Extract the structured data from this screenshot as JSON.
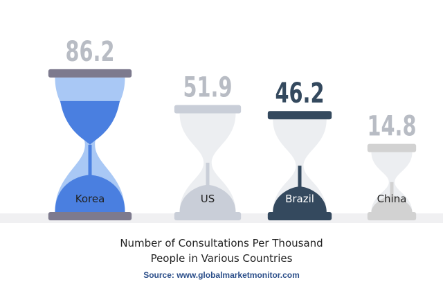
{
  "chart_data": {
    "type": "hourglass",
    "categories": [
      "Korea",
      "US",
      "Brazil",
      "China"
    ],
    "values": [
      86.2,
      51.9,
      46.2,
      14.8
    ],
    "colors": [
      "#4a7fe0",
      "#c9ced8",
      "#34495e",
      "#d2d2d2"
    ],
    "title": "Number of Consultations Per Thousand People in Various Countries",
    "source": "Source: www.globalmarketmonitor.com"
  }
}
